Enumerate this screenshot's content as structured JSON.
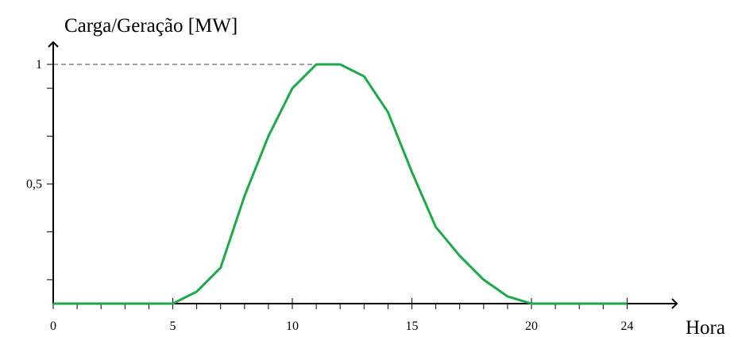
{
  "chart_data": {
    "type": "line",
    "ylabel": "Carga/Geração [MW]",
    "xlabel": "Hora",
    "xlim": [
      0,
      26
    ],
    "ylim": [
      0,
      1.02
    ],
    "x_ticks": [
      0,
      5,
      10,
      15,
      20,
      24
    ],
    "x_tick_labels": [
      "0",
      "5",
      "10",
      "15",
      "20",
      "24"
    ],
    "x_minor_ticks": [
      1,
      2,
      3,
      4,
      6,
      7,
      8,
      9,
      11,
      12,
      13,
      14,
      16,
      17,
      18,
      19,
      21,
      22,
      23
    ],
    "y_ticks": [
      0.5,
      1
    ],
    "y_tick_labels": [
      "0,5",
      "1"
    ],
    "y_minor_ticks": [
      0.1,
      0.3,
      0.7,
      0.9
    ],
    "reference_line": {
      "y": 1,
      "x_from": 0,
      "x_to": 11,
      "style": "dashed"
    },
    "grid": false,
    "series": [
      {
        "color": "#1aaa4a",
        "x": [
          0,
          1,
          2,
          3,
          4,
          5,
          6,
          7,
          8,
          9,
          10,
          11,
          12,
          13,
          14,
          15,
          16,
          17,
          18,
          19,
          20,
          21,
          22,
          23,
          24
        ],
        "values": [
          0,
          0,
          0,
          0,
          0,
          0,
          0.05,
          0.15,
          0.45,
          0.7,
          0.9,
          1.0,
          1.0,
          0.95,
          0.8,
          0.55,
          0.32,
          0.2,
          0.1,
          0.03,
          0,
          0,
          0,
          0,
          0
        ]
      }
    ]
  }
}
